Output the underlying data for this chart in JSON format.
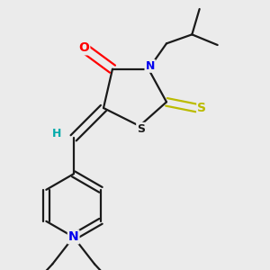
{
  "bg_color": "#ebebeb",
  "bond_color": "#1a1a1a",
  "atom_colors": {
    "O": "#ff0000",
    "N": "#0000ee",
    "S_thione": "#bbbb00",
    "S_ring": "#1a1a1a",
    "H": "#00aaaa",
    "C": "#1a1a1a"
  },
  "font_size": 10,
  "lw": 1.6
}
